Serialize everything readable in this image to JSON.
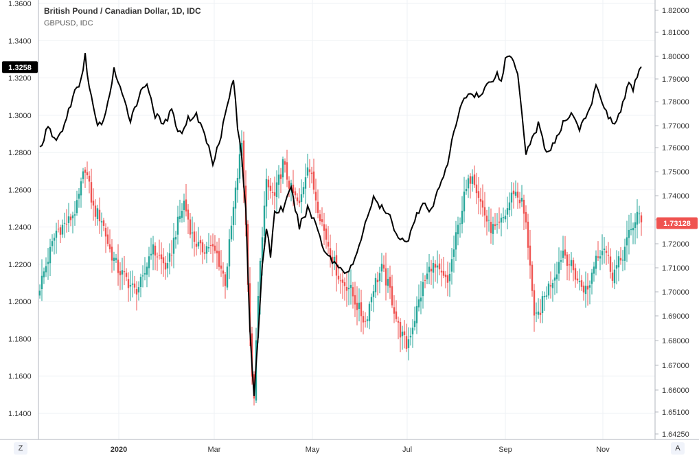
{
  "chart_data": {
    "type": "candlestick-with-line-overlay",
    "title": "British Pound / Canadian Dollar, 1D, IDC",
    "subtitle": "GBPUSD, IDC",
    "x_labels": [
      "2020",
      "Mar",
      "May",
      "Jul",
      "Sep",
      "Nov"
    ],
    "left_axis": {
      "ticks": [
        "1.3600",
        "1.3400",
        "1.3200",
        "1.3000",
        "1.2800",
        "1.2600",
        "1.2400",
        "1.2200",
        "1.2000",
        "1.1800",
        "1.1600",
        "1.1400"
      ],
      "range": [
        1.12,
        1.36
      ],
      "current_label": "1.3258",
      "current_value": 1.3258
    },
    "right_axis": {
      "ticks": [
        "1.82000",
        "1.81000",
        "1.80000",
        "1.79000",
        "1.78000",
        "1.77000",
        "1.76000",
        "1.75000",
        "1.74000",
        "1.73000",
        "1.72000",
        "1.71000",
        "1.70000",
        "1.69000",
        "1.68000",
        "1.67000",
        "1.66000",
        "1.65100",
        "1.64250"
      ],
      "current_label": "1.73128",
      "current_value": 1.73128
    },
    "colors": {
      "up": "#26a69a",
      "down": "#ef5350",
      "line": "#000000",
      "last_price_bg": "#ef5350",
      "left_badge_bg": "#000000",
      "grid": "#eef0f4"
    },
    "gbpcad_close_key_points": [
      [
        0,
        1.705
      ],
      [
        8,
        1.728
      ],
      [
        14,
        1.732
      ],
      [
        18,
        1.738
      ],
      [
        22,
        1.755
      ],
      [
        26,
        1.737
      ],
      [
        30,
        1.733
      ],
      [
        34,
        1.72
      ],
      [
        38,
        1.712
      ],
      [
        42,
        1.708
      ],
      [
        46,
        1.703
      ],
      [
        50,
        1.707
      ],
      [
        54,
        1.721
      ],
      [
        58,
        1.717
      ],
      [
        62,
        1.712
      ],
      [
        66,
        1.728
      ],
      [
        70,
        1.74
      ],
      [
        74,
        1.726
      ],
      [
        78,
        1.72
      ],
      [
        82,
        1.722
      ],
      [
        86,
        1.718
      ],
      [
        90,
        1.707
      ],
      [
        94,
        1.737
      ],
      [
        98,
        1.765
      ],
      [
        100,
        1.73
      ],
      [
        103,
        1.665
      ],
      [
        104,
        1.66
      ],
      [
        106,
        1.7
      ],
      [
        108,
        1.728
      ],
      [
        110,
        1.747
      ],
      [
        114,
        1.742
      ],
      [
        118,
        1.756
      ],
      [
        122,
        1.745
      ],
      [
        126,
        1.738
      ],
      [
        130,
        1.757
      ],
      [
        134,
        1.742
      ],
      [
        138,
        1.728
      ],
      [
        142,
        1.717
      ],
      [
        146,
        1.707
      ],
      [
        150,
        1.705
      ],
      [
        154,
        1.697
      ],
      [
        158,
        1.69
      ],
      [
        162,
        1.705
      ],
      [
        166,
        1.712
      ],
      [
        170,
        1.703
      ],
      [
        174,
        1.688
      ],
      [
        178,
        1.68
      ],
      [
        182,
        1.692
      ],
      [
        186,
        1.705
      ],
      [
        190,
        1.714
      ],
      [
        194,
        1.71
      ],
      [
        198,
        1.706
      ],
      [
        202,
        1.725
      ],
      [
        206,
        1.742
      ],
      [
        210,
        1.753
      ],
      [
        214,
        1.74
      ],
      [
        218,
        1.73
      ],
      [
        222,
        1.728
      ],
      [
        226,
        1.735
      ],
      [
        230,
        1.745
      ],
      [
        234,
        1.74
      ],
      [
        236,
        1.73
      ],
      [
        238,
        1.715
      ],
      [
        240,
        1.69
      ],
      [
        242,
        1.693
      ],
      [
        246,
        1.703
      ],
      [
        250,
        1.71
      ],
      [
        254,
        1.72
      ],
      [
        258,
        1.713
      ],
      [
        262,
        1.706
      ],
      [
        266,
        1.703
      ],
      [
        270,
        1.718
      ],
      [
        274,
        1.722
      ],
      [
        278,
        1.71
      ],
      [
        282,
        1.716
      ],
      [
        286,
        1.726
      ],
      [
        290,
        1.735
      ],
      [
        292,
        1.731
      ]
    ],
    "gbpusd_line_key_points": [
      [
        0,
        1.2825
      ],
      [
        4,
        1.293
      ],
      [
        8,
        1.286
      ],
      [
        12,
        1.295
      ],
      [
        16,
        1.31
      ],
      [
        20,
        1.318
      ],
      [
        22,
        1.333
      ],
      [
        24,
        1.315
      ],
      [
        28,
        1.293
      ],
      [
        32,
        1.3
      ],
      [
        36,
        1.325
      ],
      [
        40,
        1.31
      ],
      [
        44,
        1.298
      ],
      [
        48,
        1.31
      ],
      [
        52,
        1.318
      ],
      [
        56,
        1.3
      ],
      [
        60,
        1.295
      ],
      [
        64,
        1.302
      ],
      [
        68,
        1.29
      ],
      [
        72,
        1.298
      ],
      [
        76,
        1.3
      ],
      [
        80,
        1.29
      ],
      [
        84,
        1.275
      ],
      [
        88,
        1.29
      ],
      [
        92,
        1.31
      ],
      [
        94,
        1.32
      ],
      [
        96,
        1.293
      ],
      [
        98,
        1.278
      ],
      [
        100,
        1.25
      ],
      [
        102,
        1.185
      ],
      [
        104,
        1.15
      ],
      [
        106,
        1.18
      ],
      [
        108,
        1.22
      ],
      [
        110,
        1.24
      ],
      [
        112,
        1.225
      ],
      [
        114,
        1.248
      ],
      [
        118,
        1.25
      ],
      [
        122,
        1.26
      ],
      [
        126,
        1.24
      ],
      [
        130,
        1.25
      ],
      [
        134,
        1.242
      ],
      [
        138,
        1.228
      ],
      [
        142,
        1.222
      ],
      [
        146,
        1.218
      ],
      [
        150,
        1.216
      ],
      [
        154,
        1.225
      ],
      [
        158,
        1.243
      ],
      [
        162,
        1.255
      ],
      [
        166,
        1.25
      ],
      [
        170,
        1.245
      ],
      [
        174,
        1.235
      ],
      [
        178,
        1.231
      ],
      [
        182,
        1.245
      ],
      [
        186,
        1.252
      ],
      [
        190,
        1.248
      ],
      [
        194,
        1.262
      ],
      [
        198,
        1.275
      ],
      [
        202,
        1.295
      ],
      [
        206,
        1.31
      ],
      [
        210,
        1.312
      ],
      [
        214,
        1.31
      ],
      [
        218,
        1.318
      ],
      [
        222,
        1.322
      ],
      [
        224,
        1.318
      ],
      [
        226,
        1.33
      ],
      [
        228,
        1.332
      ],
      [
        230,
        1.33
      ],
      [
        232,
        1.323
      ],
      [
        234,
        1.302
      ],
      [
        236,
        1.28
      ],
      [
        238,
        1.285
      ],
      [
        242,
        1.295
      ],
      [
        246,
        1.28
      ],
      [
        250,
        1.285
      ],
      [
        254,
        1.295
      ],
      [
        258,
        1.302
      ],
      [
        262,
        1.293
      ],
      [
        266,
        1.3
      ],
      [
        270,
        1.315
      ],
      [
        274,
        1.305
      ],
      [
        278,
        1.295
      ],
      [
        282,
        1.302
      ],
      [
        286,
        1.318
      ],
      [
        288,
        1.312
      ],
      [
        290,
        1.322
      ],
      [
        292,
        1.326
      ]
    ],
    "grid": true,
    "legend_position": "top-left"
  },
  "controls": {
    "left": "Z",
    "right": "A"
  }
}
